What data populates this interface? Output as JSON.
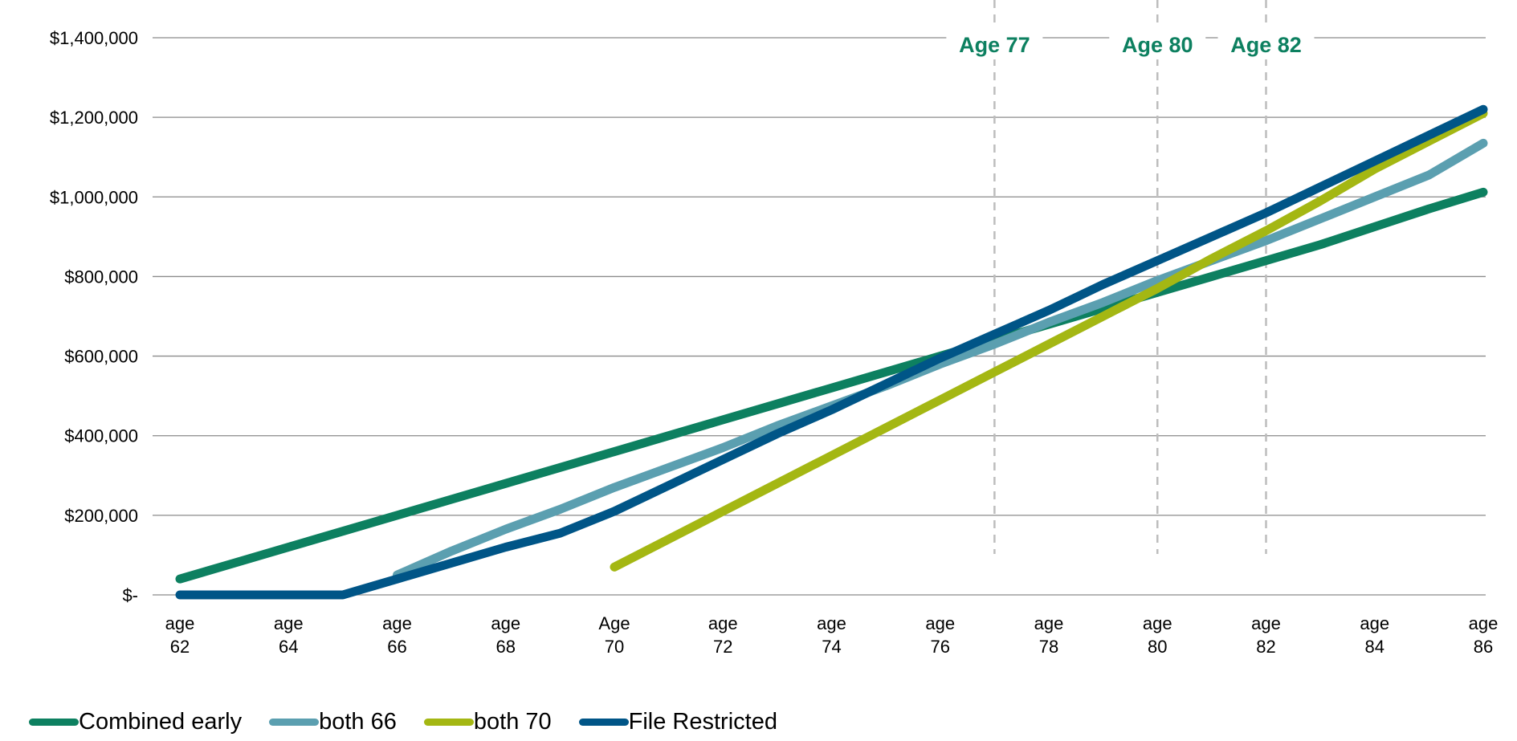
{
  "chart_data": {
    "type": "line",
    "categories": [
      "age 62",
      "age 63",
      "age 64",
      "age 65",
      "age 66",
      "age 67",
      "age 68",
      "age 69",
      "Age 70",
      "age 71",
      "age 72",
      "age 73",
      "age 74",
      "age 75",
      "age 76",
      "age 77",
      "age 78",
      "age 79",
      "age 80",
      "age 81",
      "age 82",
      "age 83",
      "age 84",
      "age 85",
      "age 86"
    ],
    "tick_labels": [
      {
        "index": 0,
        "lines": [
          "age",
          "62"
        ]
      },
      {
        "index": 2,
        "lines": [
          "age",
          "64"
        ]
      },
      {
        "index": 4,
        "lines": [
          "age",
          "66"
        ]
      },
      {
        "index": 6,
        "lines": [
          "age",
          "68"
        ]
      },
      {
        "index": 8,
        "lines": [
          "Age",
          "70"
        ]
      },
      {
        "index": 10,
        "lines": [
          "age",
          "72"
        ]
      },
      {
        "index": 12,
        "lines": [
          "age",
          "74"
        ]
      },
      {
        "index": 14,
        "lines": [
          "age",
          "76"
        ]
      },
      {
        "index": 16,
        "lines": [
          "age",
          "78"
        ]
      },
      {
        "index": 18,
        "lines": [
          "age",
          "80"
        ]
      },
      {
        "index": 20,
        "lines": [
          "age",
          "82"
        ]
      },
      {
        "index": 22,
        "lines": [
          "age",
          "84"
        ]
      },
      {
        "index": 24,
        "lines": [
          "age",
          "86"
        ]
      }
    ],
    "y_ticks": [
      {
        "value": 0,
        "label": "$-"
      },
      {
        "value": 200000,
        "label": "$200,000"
      },
      {
        "value": 400000,
        "label": "$400,000"
      },
      {
        "value": 600000,
        "label": "$600,000"
      },
      {
        "value": 800000,
        "label": "$800,000"
      },
      {
        "value": 1000000,
        "label": "$1,000,000"
      },
      {
        "value": 1200000,
        "label": "$1,200,000"
      },
      {
        "value": 1400000,
        "label": "$1,400,000"
      }
    ],
    "ylim": [
      0,
      1400000
    ],
    "grid": true,
    "legend_position": "bottom-left",
    "series": [
      {
        "name": "Combined  early",
        "color": "#0d8060",
        "values": [
          40000,
          80000,
          120000,
          160000,
          200000,
          240000,
          280000,
          320000,
          360000,
          400000,
          440000,
          480000,
          520000,
          560000,
          600000,
          640000,
          680000,
          720000,
          760000,
          800000,
          840000,
          880000,
          925000,
          970000,
          1012000
        ]
      },
      {
        "name": "both 66",
        "color": "#5b9fb0",
        "values": [
          null,
          null,
          null,
          null,
          50000,
          110000,
          165000,
          215000,
          270000,
          320000,
          370000,
          425000,
          475000,
          525000,
          580000,
          630000,
          685000,
          735000,
          790000,
          840000,
          890000,
          945000,
          1000000,
          1055000,
          1135000
        ]
      },
      {
        "name": "both 70",
        "color": "#a4b713",
        "values": [
          null,
          null,
          null,
          null,
          null,
          null,
          null,
          null,
          70000,
          140000,
          210000,
          280000,
          350000,
          420000,
          490000,
          560000,
          630000,
          700000,
          770000,
          845000,
          915000,
          990000,
          1070000,
          1140000,
          1210000
        ]
      },
      {
        "name": "File Restricted",
        "color": "#005587",
        "values": [
          0,
          0,
          0,
          0,
          40000,
          80000,
          120000,
          155000,
          210000,
          275000,
          340000,
          405000,
          465000,
          530000,
          595000,
          655000,
          715000,
          780000,
          840000,
          900000,
          960000,
          1025000,
          1090000,
          1155000,
          1220000
        ]
      }
    ],
    "annotations": [
      {
        "label": "Age 77",
        "x": 77,
        "color": "#0d8060"
      },
      {
        "label": "Age 80",
        "x": 80,
        "color": "#0d8060"
      },
      {
        "label": "Age 82",
        "x": 82,
        "color": "#0d8060"
      }
    ]
  }
}
